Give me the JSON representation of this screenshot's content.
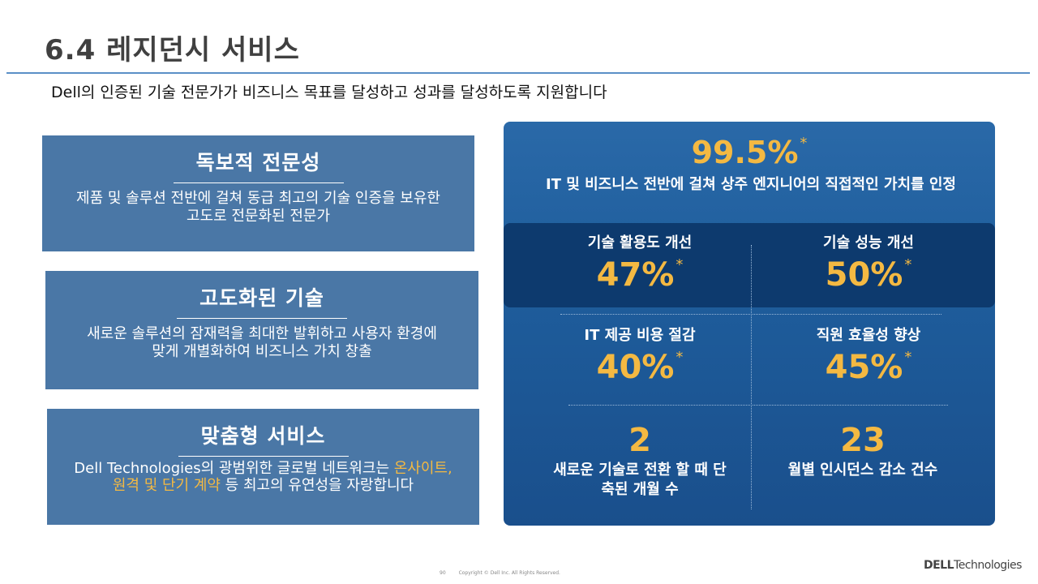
{
  "slide": {
    "title": "6.4 레지던시 서비스",
    "subtitle": "Dell의 인증된 기술 전문가가 비즈니스 목표를 달성하고 성과를 달성하도록 지원합니다"
  },
  "cards": [
    {
      "title": "독보적 전문성",
      "body": "제품 및 솔루션 전반에 걸쳐 동급 최고의 기술 인증을 보유한 고도로 전문화된 전문가"
    },
    {
      "title": "고도화된 기술",
      "body": "새로운 솔루션의 잠재력을 최대한 발휘하고 사용자 환경에 맞게 개별화하여 비즈니스 가치 창출"
    },
    {
      "title": "맞춤형 서비스",
      "body_prefix": "Dell Technologies의 광범위한 글로벌 네트워크는 ",
      "body_highlight": "온사이트, 원격 및 단기 계약",
      "body_suffix": " 등 최고의 유연성을 자랑합니다"
    }
  ],
  "stats": {
    "headline": {
      "value": "99.5%",
      "mark": "*",
      "label": "IT 및 비즈니스 전반에 걸쳐 상주 엔지니어의 직접적인 가치를 인정"
    },
    "tech_utilization": {
      "label": "기술 활용도 개선",
      "value": "47%",
      "mark": "*"
    },
    "tech_performance": {
      "label": "기술 성능 개선",
      "value": "50%",
      "mark": "*"
    },
    "it_cost": {
      "label": "IT 제공 비용 절감",
      "value": "40%",
      "mark": "*"
    },
    "staff_efficiency": {
      "label": "직원 효율성 향상",
      "value": "45%",
      "mark": "*"
    },
    "transition_months": {
      "value": "2",
      "label": "새로운 기술로 전환 할 때 단축된 개월 수"
    },
    "incident_reduction": {
      "value": "23",
      "label": "월별 인시던스 감소 건수"
    }
  },
  "footer": {
    "page": "90",
    "copyright": "Copyright © Dell Inc. All Rights Reserved.",
    "brand_bold": "DELL",
    "brand_rest": "Technologies"
  },
  "colors": {
    "accent": "#f4b942",
    "card_bg": "#4a77a6",
    "panel_bg": "#1e5d9c",
    "panel_dark": "#0d3a6e",
    "rule": "#5b8fc7"
  }
}
